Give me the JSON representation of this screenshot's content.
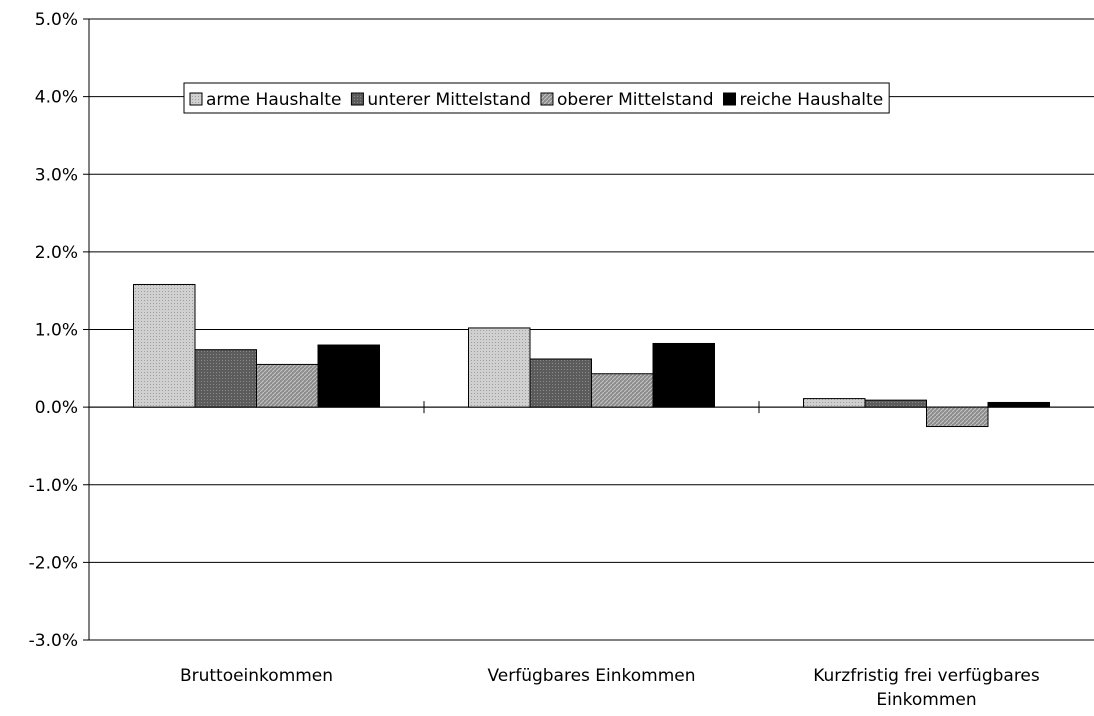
{
  "chart_data": {
    "type": "bar",
    "categories": [
      [
        "Bruttoeinkommen"
      ],
      [
        "Verfügbares Einkommen"
      ],
      [
        "Kurzfristig frei verfügbares",
        "Einkommen"
      ]
    ],
    "series": [
      {
        "name": "arme Haushalte",
        "values": [
          1.58,
          1.02,
          0.11
        ],
        "color": "#c8c8c8",
        "pattern": "dots"
      },
      {
        "name": "unterer Mittelstand",
        "values": [
          0.74,
          0.62,
          0.09
        ],
        "color": "#6e6e6e",
        "pattern": "grid"
      },
      {
        "name": "oberer Mittelstand",
        "values": [
          0.55,
          0.43,
          -0.25
        ],
        "color": "#9a9a9a",
        "pattern": "hatch"
      },
      {
        "name": "reiche Haushalte",
        "values": [
          0.8,
          0.82,
          0.06
        ],
        "color": "#000000",
        "pattern": "solid"
      }
    ],
    "yticks": [
      "5.0%",
      "4.0%",
      "3.0%",
      "2.0%",
      "1.0%",
      "0.0%",
      "-1.0%",
      "-2.0%",
      "-3.0%"
    ],
    "ylim": [
      -3,
      5
    ],
    "title": "",
    "xlabel": "",
    "ylabel": "",
    "grid": true,
    "legend_position": "top-center"
  }
}
